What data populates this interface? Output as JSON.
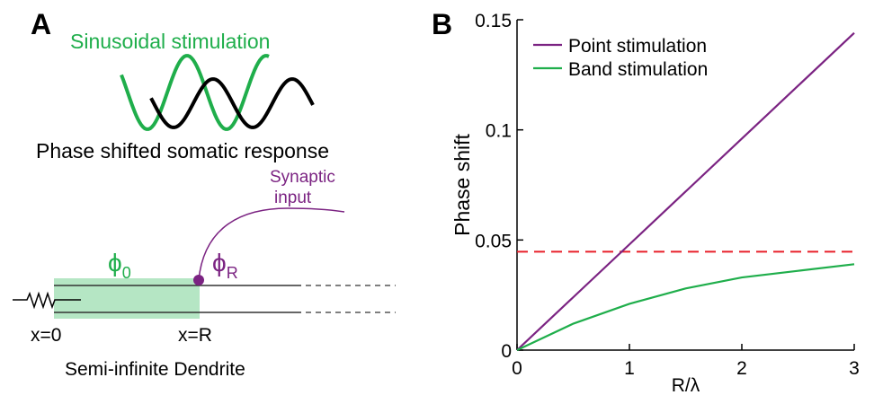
{
  "panel_labels": {
    "a": "A",
    "b": "B"
  },
  "diagram": {
    "stimulation_label": "Sinusoidal stimulation",
    "response_label": "Phase shifted somatic response",
    "synapse_label": [
      "Synaptic",
      "input"
    ],
    "phi_0": {
      "symbol": "ϕ",
      "subscript": "0"
    },
    "phi_R": {
      "symbol": "ϕ",
      "subscript": "R"
    },
    "x0_label": "x=0",
    "xR_label": "x=R",
    "caption": "Semi-infinite Dendrite"
  },
  "chart_data": {
    "type": "line",
    "xlabel": "R/λ",
    "ylabel": "Phase shift",
    "x": [
      0,
      0.5,
      1,
      1.5,
      2,
      2.5,
      3
    ],
    "series": [
      {
        "name": "Point stimulation",
        "color": "#7b2382",
        "values": [
          0,
          0.024,
          0.048,
          0.072,
          0.096,
          0.12,
          0.144
        ]
      },
      {
        "name": "Band stimulation",
        "color": "#1fae4b",
        "values": [
          0,
          0.012,
          0.021,
          0.028,
          0.033,
          0.036,
          0.039
        ]
      }
    ],
    "reference_line": {
      "value": 0.0447,
      "color": "#e8202a"
    },
    "xlim": [
      0,
      3
    ],
    "ylim": [
      0,
      0.15
    ],
    "xticks": [
      0,
      1,
      2,
      3
    ],
    "yticks": [
      0,
      0.05,
      0.1,
      0.15
    ],
    "legend": "upper left"
  }
}
